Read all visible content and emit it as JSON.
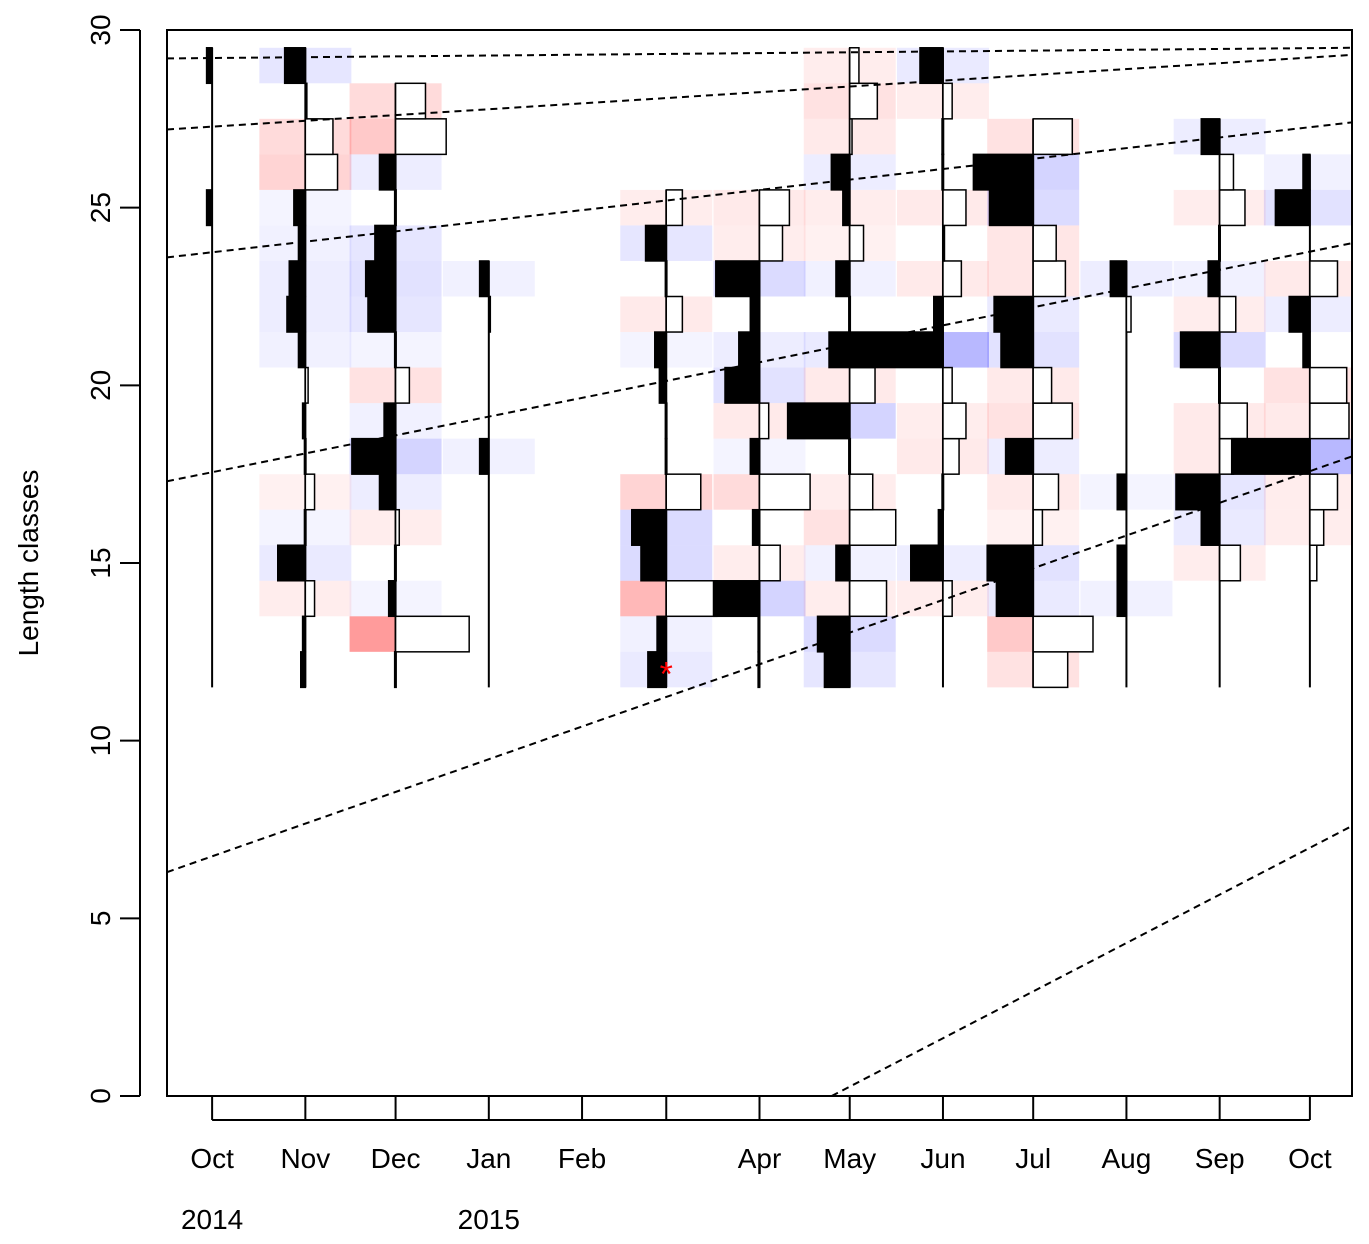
{
  "chart_data": {
    "type": "heatmap",
    "title": "",
    "xlabel": "",
    "ylabel": "Length classes",
    "ylim": [
      0,
      30
    ],
    "y_ticks": [
      0,
      5,
      10,
      15,
      20,
      25,
      30
    ],
    "length_classes": [
      12,
      13,
      14,
      15,
      16,
      17,
      18,
      19,
      20,
      21,
      22,
      23,
      24,
      25,
      26,
      27,
      28,
      29
    ],
    "bin_width": 1,
    "x_ticks": [
      {
        "date": "2014-10-01",
        "label": "Oct"
      },
      {
        "date": "2014-11-01",
        "label": "Nov"
      },
      {
        "date": "2014-12-01",
        "label": "Dec"
      },
      {
        "date": "2015-01-01",
        "label": "Jan"
      },
      {
        "date": "2015-02-01",
        "label": "Feb"
      },
      {
        "date": "2015-03-01",
        "label": ""
      },
      {
        "date": "2015-04-01",
        "label": "Apr"
      },
      {
        "date": "2015-05-01",
        "label": "May"
      },
      {
        "date": "2015-06-01",
        "label": "Jun"
      },
      {
        "date": "2015-07-01",
        "label": "Jul"
      },
      {
        "date": "2015-08-01",
        "label": "Aug"
      },
      {
        "date": "2015-09-01",
        "label": "Sep"
      },
      {
        "date": "2015-10-01",
        "label": "Oct"
      }
    ],
    "year_labels": [
      {
        "date": "2014-10-01",
        "label": "2014"
      },
      {
        "date": "2015-01-01",
        "label": "2015"
      }
    ],
    "x_range": [
      "2014-09-16",
      "2015-10-15"
    ],
    "legend": "none",
    "grid": false,
    "colors": {
      "positive": "#000000",
      "negative": "#ffffff",
      "bar_outline": "#000000",
      "cell_positive": "#ff0000",
      "cell_negative": "#0000ff",
      "growth_curve": "#000000",
      "marker": "#ff0000"
    },
    "samples": [
      {
        "date": "2014-10-01",
        "bars": {
          "25": 0.12,
          "29": 0.12
        },
        "cells": {}
      },
      {
        "date": "2014-11-01",
        "bars": {
          "12": 0.1,
          "13": 0.06,
          "14": -0.2,
          "15": 0.6,
          "16": 0.02,
          "17": -0.2,
          "18": 0.02,
          "19": 0.06,
          "20": -0.06,
          "21": 0.15,
          "22": 0.4,
          "23": 0.35,
          "24": 0.15,
          "25": 0.25,
          "26": -0.7,
          "27": -0.6,
          "28": 0,
          "29": 0.45
        },
        "cells": {
          "15": -0.06,
          "16": -0.03,
          "17": 0.04,
          "14": 0.05,
          "22": -0.05,
          "23": -0.05,
          "24": -0.04,
          "21": -0.04,
          "25": -0.03,
          "26": 0.12,
          "27": 0.1,
          "29": -0.07
        }
      },
      {
        "date": "2014-12-01",
        "bars": {
          "12": 0.02,
          "13": -1.6,
          "14": 0.15,
          "15": 0.02,
          "16": -0.08,
          "17": 0.35,
          "18": 0.95,
          "19": 0.25,
          "20": -0.3,
          "21": 0.02,
          "22": 0.6,
          "23": 0.65,
          "24": 0.45,
          "25": 0.02,
          "26": 0.35,
          "27": -1.1,
          "28": -0.65
        },
        "cells": {
          "13": 0.28,
          "14": -0.03,
          "16": 0.05,
          "17": -0.05,
          "18": -0.12,
          "19": -0.04,
          "20": 0.08,
          "21": -0.03,
          "22": -0.07,
          "23": -0.08,
          "24": -0.07,
          "26": -0.05,
          "27": 0.15,
          "28": 0.1
        }
      },
      {
        "date": "2015-01-01",
        "bars": {
          "18": 0.2,
          "22": -0.03,
          "23": 0.2
        },
        "cells": {
          "18": -0.04,
          "23": -0.04
        }
      },
      {
        "date": "2015-03-01",
        "bars": {
          "12": 0.4,
          "13": 0.2,
          "14": -1.1,
          "15": 0.55,
          "16": 0.75,
          "17": -0.75,
          "18": 0.02,
          "19": 0.02,
          "20": 0.15,
          "21": 0.25,
          "22": -0.35,
          "23": 0.02,
          "24": 0.45,
          "25": -0.35
        },
        "cells": {
          "12": -0.06,
          "13": -0.04,
          "14": 0.2,
          "15": -0.1,
          "16": -0.1,
          "17": 0.12,
          "21": -0.03,
          "22": 0.06,
          "24": -0.07,
          "25": 0.05
        }
      },
      {
        "date": "2015-04-01",
        "bars": {
          "12": 0.03,
          "13": 0.03,
          "14": 1.0,
          "15": -0.45,
          "16": 0.15,
          "17": -1.1,
          "18": 0.2,
          "19": -0.2,
          "20": 0.75,
          "21": 0.45,
          "22": 0.2,
          "23": 0.95,
          "24": -0.5,
          "25": -0.65
        },
        "cells": {
          "14": -0.12,
          "15": 0.05,
          "17": 0.1,
          "18": -0.03,
          "19": 0.06,
          "20": -0.08,
          "21": -0.05,
          "23": -0.1,
          "24": 0.05,
          "25": 0.06
        }
      },
      {
        "date": "2015-05-01",
        "bars": {
          "12": 0.55,
          "13": 0.7,
          "14": -0.8,
          "15": 0.3,
          "16": -1.0,
          "17": -0.5,
          "18": 0.02,
          "19": 1.35,
          "20": -0.55,
          "21": 0.45,
          "22": 0.02,
          "23": 0.3,
          "24": -0.3,
          "25": 0.15,
          "26": 0.4,
          "27": -0.05,
          "28": -0.6,
          "29": -0.2
        },
        "cells": {
          "12": -0.07,
          "13": -0.1,
          "14": 0.05,
          "15": -0.04,
          "16": 0.08,
          "17": 0.05,
          "19": -0.12,
          "20": 0.06,
          "21": -0.06,
          "23": -0.04,
          "24": 0.04,
          "25": 0.05,
          "26": -0.05,
          "27": 0.06,
          "28": 0.08,
          "29": 0.05
        }
      },
      {
        "date": "2015-06-01",
        "bars": {
          "14": -0.2,
          "15": 0.7,
          "16": 0.1,
          "17": 0.02,
          "18": -0.35,
          "19": -0.5,
          "20": -0.2,
          "21": 2.0,
          "22": 0.2,
          "23": -0.4,
          "24": -0.02,
          "25": -0.5,
          "26": 0.02,
          "27": 0.02,
          "28": -0.2,
          "29": 0.5
        },
        "cells": {
          "14": 0.05,
          "15": -0.05,
          "18": 0.06,
          "19": 0.05,
          "21": -0.2,
          "23": 0.06,
          "25": 0.06,
          "28": 0.05,
          "29": -0.06
        }
      },
      {
        "date": "2015-07-01",
        "bars": {
          "12": -0.75,
          "13": -1.3,
          "14": 0.8,
          "15": 1.0,
          "16": -0.2,
          "17": -0.55,
          "18": 0.6,
          "19": -0.85,
          "20": -0.4,
          "21": 0.7,
          "22": 0.85,
          "23": -0.7,
          "24": -0.5,
          "25": 0.95,
          "26": 1.3,
          "27": -0.85
        },
        "cells": {
          "12": 0.08,
          "13": 0.15,
          "14": -0.06,
          "15": -0.08,
          "16": 0.04,
          "17": 0.06,
          "18": -0.05,
          "19": 0.08,
          "20": 0.06,
          "21": -0.08,
          "22": -0.06,
          "23": 0.07,
          "24": 0.07,
          "25": -0.1,
          "26": -0.12,
          "27": 0.08
        }
      },
      {
        "date": "2015-08-01",
        "bars": {
          "14": 0.2,
          "15": 0.2,
          "17": 0.2,
          "22": -0.1,
          "23": 0.35
        },
        "cells": {
          "14": -0.04,
          "17": -0.03,
          "23": -0.05
        }
      },
      {
        "date": "2015-09-01",
        "bars": {
          "15": -0.45,
          "16": 0.4,
          "17": 0.95,
          "18": -0.3,
          "19": -0.6,
          "20": 0.02,
          "21": 0.85,
          "22": -0.35,
          "23": 0.25,
          "24": 0.02,
          "25": -0.55,
          "26": -0.3,
          "27": 0.4
        },
        "cells": {
          "15": 0.05,
          "16": -0.06,
          "17": -0.07,
          "18": 0.06,
          "19": 0.06,
          "21": -0.1,
          "22": 0.05,
          "23": -0.04,
          "25": 0.05,
          "27": -0.05
        }
      },
      {
        "date": "2015-10-01",
        "bars": {
          "15": -0.15,
          "16": -0.3,
          "17": -0.6,
          "18": 1.7,
          "19": -0.85,
          "20": -0.8,
          "21": 0.15,
          "22": 0.45,
          "23": -0.6,
          "25": 0.75,
          "26": 0.15
        },
        "cells": {
          "16": 0.05,
          "17": 0.05,
          "18": -0.2,
          "19": 0.06,
          "20": 0.08,
          "22": -0.05,
          "23": 0.06,
          "25": -0.08,
          "26": -0.04
        }
      }
    ],
    "growth_curves": [
      {
        "x": [
          "2014-09-16",
          "2015-10-15"
        ],
        "y": [
          29.2,
          29.5
        ],
        "wraps_at": 30
      },
      {
        "x": [
          "2014-09-16",
          "2015-10-15"
        ],
        "y": [
          27.2,
          29.3
        ]
      },
      {
        "x": [
          "2014-09-16",
          "2015-10-15"
        ],
        "y": [
          23.6,
          27.4
        ]
      },
      {
        "x": [
          "2014-09-16",
          "2015-10-15"
        ],
        "y": [
          17.3,
          24.0
        ]
      },
      {
        "x": [
          "2014-09-16",
          "2015-10-15"
        ],
        "y": [
          6.3,
          18.0
        ]
      },
      {
        "x": [
          "2015-04-25",
          "2015-10-15"
        ],
        "y": [
          0,
          7.6
        ]
      }
    ],
    "marker": {
      "date": "2015-03-01",
      "length": 12,
      "symbol": "*"
    }
  }
}
